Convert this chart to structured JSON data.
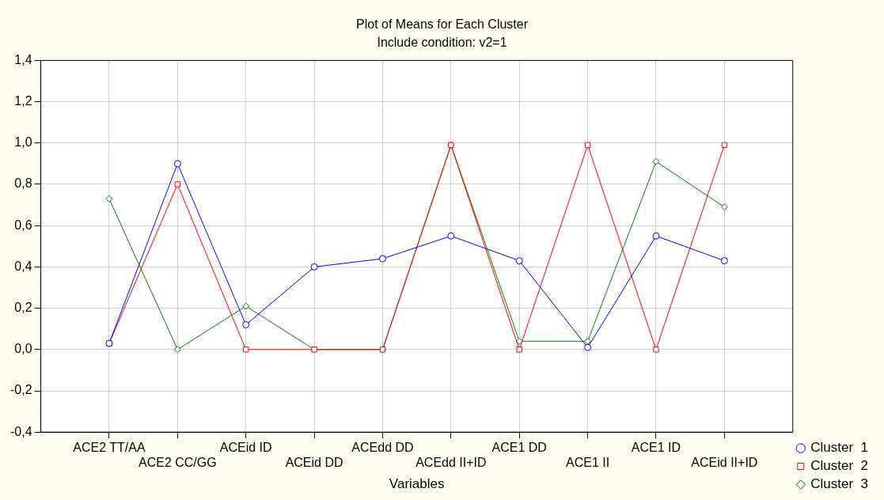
{
  "chart_data": {
    "type": "line",
    "title": "Plot of Means for Each Cluster",
    "subtitle": "Include condition: v2=1",
    "xlabel": "Variables",
    "categories": [
      "ACE2 TT/AA",
      "ACE2 CC/GG",
      "ACEid ID",
      "ACEid DD",
      "ACEdd DD",
      "ACEdd II+ID",
      "ACE1 DD",
      "ACE1 II",
      "ACE1 ID",
      "ACEid II+ID"
    ],
    "series": [
      {
        "name": "Cluster  1",
        "color": "#0000ff",
        "marker": "circle",
        "values": [
          0.03,
          0.9,
          0.12,
          0.4,
          0.44,
          0.55,
          0.43,
          0.01,
          0.55,
          0.43
        ]
      },
      {
        "name": "Cluster  2",
        "color": "#ff0000",
        "marker": "square",
        "values": [
          0.03,
          0.8,
          0.0,
          0.0,
          0.0,
          0.99,
          0.0,
          0.99,
          0.0,
          0.99
        ]
      },
      {
        "name": "Cluster  3",
        "color": "#008000",
        "marker": "diamond",
        "values": [
          0.73,
          0.0,
          0.21,
          0.0,
          0.0,
          0.99,
          0.04,
          0.04,
          0.91,
          0.69
        ]
      }
    ],
    "ylim": [
      -0.4,
      1.4
    ],
    "yticks": [
      {
        "value": -0.4,
        "label": "-0,4"
      },
      {
        "value": -0.2,
        "label": "-0,2"
      },
      {
        "value": 0,
        "label": "0,0"
      },
      {
        "value": 0.2,
        "label": "0,2"
      },
      {
        "value": 0.4,
        "label": "0,4"
      },
      {
        "value": 0.6,
        "label": "0,6"
      },
      {
        "value": 0.8,
        "label": "0,8"
      },
      {
        "value": 1.0,
        "label": "1,0"
      },
      {
        "value": 1.2,
        "label": "1,2"
      },
      {
        "value": 1.4,
        "label": "1,4"
      }
    ],
    "grid": true,
    "legend": "bottom right",
    "line_style": "solid"
  }
}
